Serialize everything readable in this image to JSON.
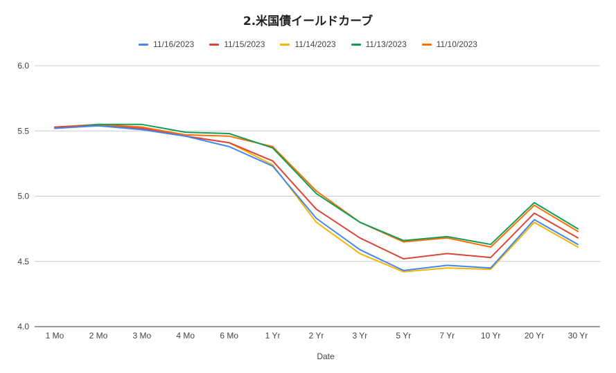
{
  "chart_data": {
    "type": "line",
    "title": "2.米国債イールドカーブ",
    "xlabel": "Date",
    "ylabel": "",
    "ylim": [
      4.0,
      6.0
    ],
    "yticks": [
      "4.0",
      "4.5",
      "5.0",
      "5.5",
      "6.0"
    ],
    "grid": true,
    "legend_position": "top",
    "categories": [
      "1 Mo",
      "2 Mo",
      "3 Mo",
      "4 Mo",
      "6 Mo",
      "1 Yr",
      "2 Yr",
      "3 Yr",
      "5 Yr",
      "7 Yr",
      "10 Yr",
      "20 Yr",
      "30 Yr"
    ],
    "series": [
      {
        "name": "11/16/2023",
        "color": "#4285f4",
        "values": [
          5.52,
          5.54,
          5.51,
          5.46,
          5.38,
          5.23,
          4.83,
          4.59,
          4.43,
          4.47,
          4.45,
          4.82,
          4.63
        ]
      },
      {
        "name": "11/15/2023",
        "color": "#db4437",
        "values": [
          5.53,
          5.54,
          5.52,
          5.46,
          5.41,
          5.27,
          4.9,
          4.68,
          4.52,
          4.56,
          4.53,
          4.87,
          4.68
        ]
      },
      {
        "name": "11/14/2023",
        "color": "#f4b400",
        "values": [
          5.52,
          5.54,
          5.52,
          5.46,
          5.41,
          5.24,
          4.8,
          4.56,
          4.42,
          4.45,
          4.44,
          4.8,
          4.61
        ]
      },
      {
        "name": "11/13/2023",
        "color": "#0f9d58",
        "values": [
          5.52,
          5.55,
          5.55,
          5.49,
          5.48,
          5.37,
          5.02,
          4.8,
          4.66,
          4.69,
          4.63,
          4.95,
          4.75
        ]
      },
      {
        "name": "11/10/2023",
        "color": "#ff6d01",
        "values": [
          5.53,
          5.55,
          5.53,
          5.47,
          5.46,
          5.38,
          5.04,
          4.8,
          4.65,
          4.68,
          4.61,
          4.93,
          4.73
        ]
      }
    ]
  }
}
